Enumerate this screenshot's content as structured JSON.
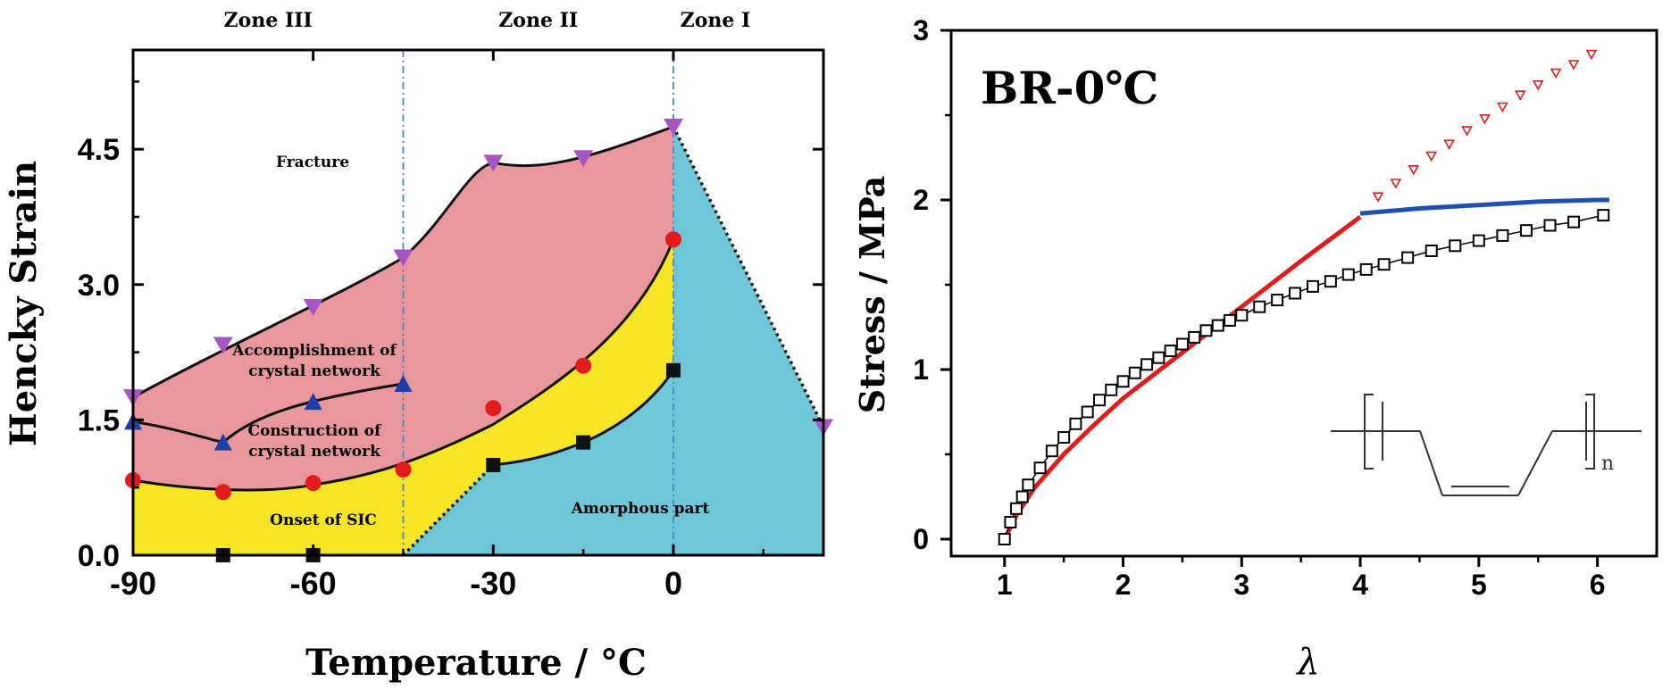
{
  "chart_data": [
    {
      "type": "area",
      "xlabel": "Temperature / °C",
      "ylabel": "Hencky Strain",
      "xlim": [
        -90,
        25
      ],
      "ylim": [
        0,
        5.6
      ],
      "x_ticks": [
        -90,
        -60,
        -30,
        0
      ],
      "x_tick_labels": [
        "-90",
        "-60",
        "-30",
        "0"
      ],
      "y_ticks": [
        0,
        1.5,
        3,
        4.5
      ],
      "y_tick_labels": [
        "0.0",
        "1.5",
        "3.0",
        "4.5"
      ],
      "grid": false,
      "zones": [
        {
          "label": "Zone III",
          "x_center": -67.5
        },
        {
          "label": "Zone II",
          "x_center": -22.5
        },
        {
          "label": "Zone I",
          "x_center": 7
        }
      ],
      "zone_boundaries": [
        -45,
        0
      ],
      "series": [
        {
          "marker": "triangle-down",
          "color": "#a855c4",
          "x": [
            -90,
            -75,
            -60,
            -45,
            -30,
            -15,
            0,
            25
          ],
          "y": [
            1.75,
            2.33,
            2.75,
            3.3,
            4.35,
            4.4,
            4.75,
            1.42
          ]
        },
        {
          "marker": "triangle-up",
          "color": "#1f3fa8",
          "x": [
            -90,
            -75,
            -60,
            -45
          ],
          "y": [
            1.48,
            1.25,
            1.7,
            1.9
          ]
        },
        {
          "marker": "circle",
          "color": "#e21b1b",
          "x": [
            -90,
            -75,
            -60,
            -45,
            -30,
            -15,
            0
          ],
          "y": [
            0.83,
            0.7,
            0.8,
            0.95,
            1.63,
            2.1,
            3.5
          ]
        },
        {
          "marker": "square",
          "color": "#111111",
          "x": [
            -75,
            -60,
            -30,
            -15,
            0
          ],
          "y": [
            0,
            0,
            1.0,
            1.25,
            2.05
          ]
        }
      ],
      "regions": [
        {
          "label": "Fracture",
          "color": "#e8989c",
          "x": -60,
          "y": 4.22
        },
        {
          "label": "Accomplishment of crystal network",
          "x": -60,
          "y": 2.25
        },
        {
          "label": "Construction of crystal network",
          "x": -60,
          "y": 1.2
        },
        {
          "label": "Onset of SIC",
          "x": -67,
          "y": 0.35,
          "color": "#f5e526"
        },
        {
          "label": "Amorphous part",
          "x": -2,
          "y": 0.45,
          "color": "#6fc6d6"
        }
      ],
      "region_labels_lines": {
        "accomplishment": [
          "Accomplishment of",
          "crystal network"
        ],
        "construction": [
          "Construction of",
          "crystal network"
        ]
      }
    },
    {
      "type": "line",
      "title": "BR-0℃",
      "xlabel": "λ",
      "ylabel": "Stress / MPa",
      "xlim": [
        0.55,
        6.5
      ],
      "ylim": [
        -0.1,
        3.0
      ],
      "x_ticks": [
        1,
        2,
        3,
        4,
        5,
        6
      ],
      "x_tick_labels": [
        "1",
        "2",
        "3",
        "4",
        "5",
        "6"
      ],
      "y_ticks": [
        0,
        1,
        2,
        3
      ],
      "y_tick_labels": [
        "0",
        "1",
        "2",
        "3"
      ],
      "grid": false,
      "series": [
        {
          "kind": "squares",
          "color": "#000000",
          "x": [
            1.0,
            1.05,
            1.1,
            1.15,
            1.2,
            1.3,
            1.4,
            1.5,
            1.6,
            1.7,
            1.8,
            1.9,
            2.0,
            2.1,
            2.2,
            2.3,
            2.4,
            2.5,
            2.6,
            2.7,
            2.8,
            2.9,
            3.0,
            3.15,
            3.3,
            3.45,
            3.6,
            3.75,
            3.9,
            4.05,
            4.2,
            4.4,
            4.6,
            4.8,
            5.0,
            5.2,
            5.4,
            5.6,
            5.8,
            6.05
          ],
          "y": [
            0.0,
            0.1,
            0.18,
            0.25,
            0.32,
            0.42,
            0.52,
            0.6,
            0.68,
            0.75,
            0.82,
            0.88,
            0.93,
            0.98,
            1.03,
            1.07,
            1.11,
            1.15,
            1.19,
            1.23,
            1.26,
            1.29,
            1.32,
            1.37,
            1.41,
            1.45,
            1.49,
            1.52,
            1.56,
            1.59,
            1.62,
            1.66,
            1.7,
            1.73,
            1.76,
            1.79,
            1.82,
            1.85,
            1.87,
            1.91
          ]
        },
        {
          "kind": "line",
          "color": "#e21b1b",
          "x": [
            1.0,
            1.1,
            1.25,
            1.5,
            1.75,
            2.0,
            2.5,
            3.0,
            3.5,
            4.0
          ],
          "y": [
            0.0,
            0.14,
            0.3,
            0.5,
            0.67,
            0.83,
            1.1,
            1.37,
            1.64,
            1.9
          ]
        },
        {
          "kind": "line",
          "color": "#1f4fb0",
          "x": [
            4.0,
            4.5,
            5.0,
            5.5,
            6.0,
            6.1
          ],
          "y": [
            1.92,
            1.95,
            1.97,
            1.99,
            2.0,
            2.0
          ]
        },
        {
          "kind": "open-triangles",
          "color": "#e21b1b",
          "x": [
            4.15,
            4.3,
            4.45,
            4.6,
            4.75,
            4.9,
            5.05,
            5.2,
            5.35,
            5.5,
            5.65,
            5.8,
            5.95
          ],
          "y": [
            2.02,
            2.1,
            2.18,
            2.26,
            2.33,
            2.41,
            2.48,
            2.55,
            2.62,
            2.68,
            2.75,
            2.8,
            2.86
          ]
        }
      ],
      "inset": {
        "name": "polybutadiene-structure",
        "subscript": "n"
      }
    }
  ]
}
